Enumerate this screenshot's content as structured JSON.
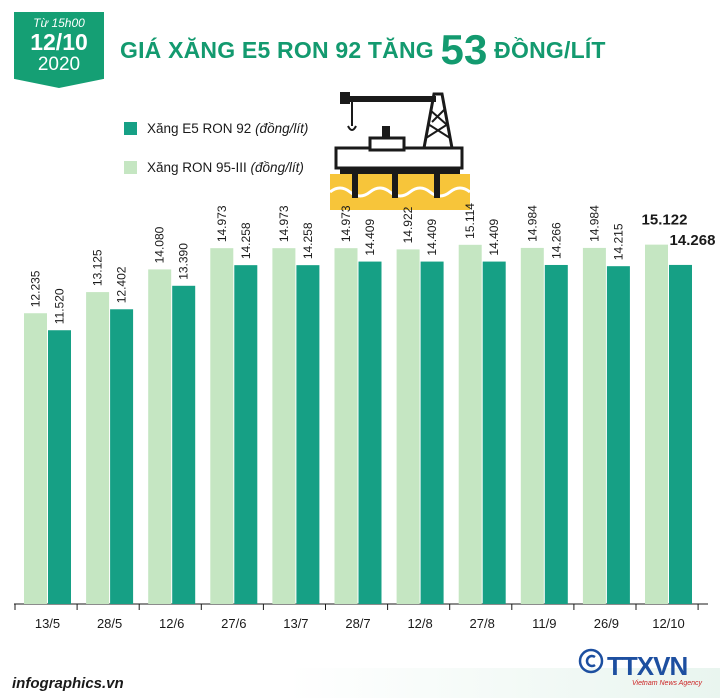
{
  "badge": {
    "from": "Từ 15h00",
    "day": "12/10",
    "year": "2020"
  },
  "headline": {
    "before": "GIÁ XĂNG E5 RON 92 TĂNG ",
    "number": "53",
    "after": " ĐỒNG/LÍT"
  },
  "legend": [
    {
      "label": "Xăng E5 RON 92 ",
      "unit": "(đồng/lít)",
      "color": "#16a085"
    },
    {
      "label": "Xăng RON 95-III ",
      "unit": "(đồng/lít)",
      "color": "#c5e6c2"
    }
  ],
  "footer": {
    "source": "infographics.vn",
    "logo": "TTXVN",
    "agency": "Vietnam News Agency"
  },
  "colors": {
    "accent": "#159f74",
    "e5": "#16a085",
    "ron95": "#c5e6c2"
  },
  "chart_data": {
    "type": "bar",
    "categories": [
      "13/5",
      "28/5",
      "12/6",
      "27/6",
      "13/7",
      "28/7",
      "12/8",
      "27/8",
      "11/9",
      "26/9",
      "12/10"
    ],
    "series": [
      {
        "name": "Xăng RON 95-III",
        "values": [
          12235,
          13125,
          14080,
          14973,
          14973,
          14973,
          14922,
          15114,
          14984,
          14984,
          15122
        ],
        "labels": [
          "12.235",
          "13.125",
          "14.080",
          "14.973",
          "14.973",
          "14.973",
          "14.922",
          "15.114",
          "14.984",
          "14.984",
          "15.122"
        ]
      },
      {
        "name": "Xăng E5 RON 92",
        "values": [
          11520,
          12402,
          13390,
          14258,
          14258,
          14409,
          14409,
          14409,
          14266,
          14215,
          14268
        ],
        "labels": [
          "11.520",
          "12.402",
          "13.390",
          "14.258",
          "14.258",
          "14.409",
          "14.409",
          "14.409",
          "14.266",
          "14.215",
          "14.268"
        ]
      }
    ],
    "ylim": [
      0,
      17000
    ],
    "grid": false
  }
}
